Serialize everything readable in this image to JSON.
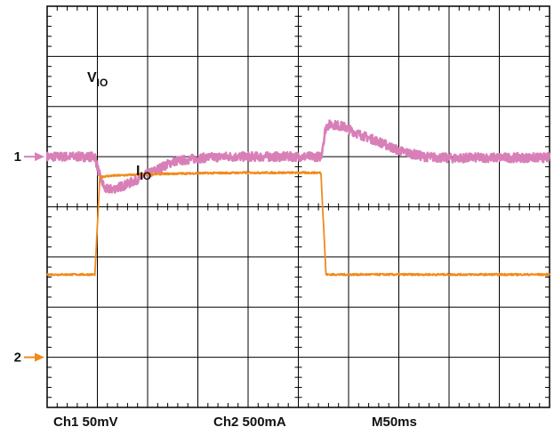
{
  "chart_data": {
    "type": "line",
    "grid": true,
    "x_divisions": 10,
    "y_divisions": 8,
    "channels": [
      {
        "marker": "1",
        "scale": "Ch1 50mV",
        "color": "#d97fb8",
        "trace_label_main": "V",
        "trace_label_sub": "IO",
        "ref_div": 5.0,
        "x_div": [
          0,
          0.95,
          1.05,
          1.15,
          1.3,
          1.6,
          2.0,
          2.5,
          3.0,
          3.5,
          4.0,
          4.5,
          5.0,
          5.3,
          5.45,
          5.55,
          5.65,
          5.9,
          6.2,
          6.6,
          7.0,
          7.5,
          8.0,
          8.5,
          9.0,
          9.5,
          10.0
        ],
        "y_div": [
          5.0,
          5.0,
          4.6,
          4.35,
          4.35,
          4.45,
          4.65,
          4.9,
          4.97,
          5.0,
          5.0,
          5.0,
          5.0,
          5.0,
          5.0,
          5.6,
          5.65,
          5.6,
          5.45,
          5.3,
          5.12,
          5.0,
          4.97,
          4.98,
          4.98,
          4.98,
          4.98
        ],
        "noise_div": 0.09
      },
      {
        "marker": "2",
        "scale": "Ch2 500mA",
        "color": "#f08a1c",
        "trace_label_main": "I",
        "trace_label_sub": "IO",
        "ref_div": 1.0,
        "x_div": [
          0,
          0.95,
          1.05,
          1.3,
          2.0,
          3.0,
          4.0,
          5.0,
          5.45,
          5.55,
          6.0,
          7.0,
          8.0,
          9.0,
          10.0
        ],
        "y_div": [
          2.65,
          2.65,
          4.6,
          4.62,
          4.65,
          4.67,
          4.68,
          4.68,
          4.68,
          2.65,
          2.65,
          2.65,
          2.65,
          2.65,
          2.65
        ],
        "noise_div": 0.02
      }
    ],
    "timebase": "M50ms"
  }
}
